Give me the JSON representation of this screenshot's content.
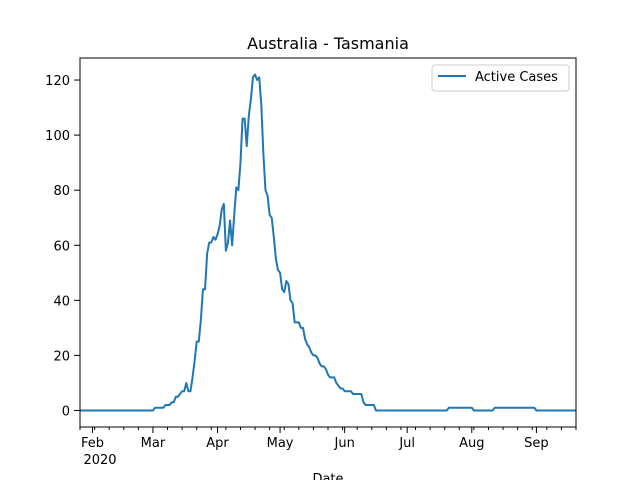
{
  "chart_data": {
    "type": "line",
    "title": "Australia - Tasmania",
    "xlabel": "Date",
    "ylabel": "",
    "year_label": "2020",
    "xlim": [
      "2020-01-26",
      "2020-09-20"
    ],
    "ylim": [
      -6,
      128
    ],
    "x_ticks": [
      {
        "date": "2020-02-01",
        "label": "Feb"
      },
      {
        "date": "2020-03-01",
        "label": "Mar"
      },
      {
        "date": "2020-04-01",
        "label": "Apr"
      },
      {
        "date": "2020-05-01",
        "label": "May"
      },
      {
        "date": "2020-06-01",
        "label": "Jun"
      },
      {
        "date": "2020-07-01",
        "label": "Jul"
      },
      {
        "date": "2020-08-01",
        "label": "Aug"
      },
      {
        "date": "2020-09-01",
        "label": "Sep"
      }
    ],
    "y_ticks": [
      0,
      20,
      40,
      60,
      80,
      100,
      120
    ],
    "legend": {
      "position": "top-right",
      "entries": [
        "Active Cases"
      ]
    },
    "grid": false,
    "series": [
      {
        "name": "Active Cases",
        "color": "#1f77b4",
        "points": [
          [
            "2020-01-26",
            0
          ],
          [
            "2020-02-15",
            0
          ],
          [
            "2020-03-01",
            0
          ],
          [
            "2020-03-02",
            1
          ],
          [
            "2020-03-06",
            1
          ],
          [
            "2020-03-07",
            2
          ],
          [
            "2020-03-09",
            2
          ],
          [
            "2020-03-10",
            3
          ],
          [
            "2020-03-11",
            3
          ],
          [
            "2020-03-12",
            5
          ],
          [
            "2020-03-13",
            5
          ],
          [
            "2020-03-14",
            6
          ],
          [
            "2020-03-15",
            7
          ],
          [
            "2020-03-16",
            7
          ],
          [
            "2020-03-17",
            10
          ],
          [
            "2020-03-18",
            7
          ],
          [
            "2020-03-19",
            7
          ],
          [
            "2020-03-20",
            12
          ],
          [
            "2020-03-21",
            18
          ],
          [
            "2020-03-22",
            25
          ],
          [
            "2020-03-23",
            25
          ],
          [
            "2020-03-24",
            33
          ],
          [
            "2020-03-25",
            44
          ],
          [
            "2020-03-26",
            44
          ],
          [
            "2020-03-27",
            57
          ],
          [
            "2020-03-28",
            61
          ],
          [
            "2020-03-29",
            61
          ],
          [
            "2020-03-30",
            63
          ],
          [
            "2020-03-31",
            62
          ],
          [
            "2020-04-01",
            64
          ],
          [
            "2020-04-02",
            67
          ],
          [
            "2020-04-03",
            73
          ],
          [
            "2020-04-04",
            75
          ],
          [
            "2020-04-05",
            58
          ],
          [
            "2020-04-06",
            61
          ],
          [
            "2020-04-07",
            69
          ],
          [
            "2020-04-08",
            60
          ],
          [
            "2020-04-09",
            71
          ],
          [
            "2020-04-10",
            81
          ],
          [
            "2020-04-11",
            80
          ],
          [
            "2020-04-12",
            90
          ],
          [
            "2020-04-13",
            106
          ],
          [
            "2020-04-14",
            106
          ],
          [
            "2020-04-15",
            96
          ],
          [
            "2020-04-16",
            107
          ],
          [
            "2020-04-17",
            113
          ],
          [
            "2020-04-18",
            121
          ],
          [
            "2020-04-19",
            122
          ],
          [
            "2020-04-20",
            120
          ],
          [
            "2020-04-21",
            121
          ],
          [
            "2020-04-22",
            111
          ],
          [
            "2020-04-23",
            93
          ],
          [
            "2020-04-24",
            80
          ],
          [
            "2020-04-25",
            78
          ],
          [
            "2020-04-26",
            71
          ],
          [
            "2020-04-27",
            70
          ],
          [
            "2020-04-28",
            63
          ],
          [
            "2020-04-29",
            55
          ],
          [
            "2020-04-30",
            51
          ],
          [
            "2020-05-01",
            50
          ],
          [
            "2020-05-02",
            44
          ],
          [
            "2020-05-03",
            43
          ],
          [
            "2020-05-04",
            47
          ],
          [
            "2020-05-05",
            46
          ],
          [
            "2020-05-06",
            40
          ],
          [
            "2020-05-07",
            39
          ],
          [
            "2020-05-08",
            32
          ],
          [
            "2020-05-09",
            32
          ],
          [
            "2020-05-10",
            32
          ],
          [
            "2020-05-11",
            30
          ],
          [
            "2020-05-12",
            30
          ],
          [
            "2020-05-13",
            26
          ],
          [
            "2020-05-14",
            24
          ],
          [
            "2020-05-15",
            23
          ],
          [
            "2020-05-16",
            21
          ],
          [
            "2020-05-17",
            20
          ],
          [
            "2020-05-18",
            20
          ],
          [
            "2020-05-19",
            19
          ],
          [
            "2020-05-20",
            17
          ],
          [
            "2020-05-21",
            16
          ],
          [
            "2020-05-22",
            16
          ],
          [
            "2020-05-23",
            15
          ],
          [
            "2020-05-24",
            13
          ],
          [
            "2020-05-25",
            12
          ],
          [
            "2020-05-26",
            12
          ],
          [
            "2020-05-27",
            12
          ],
          [
            "2020-05-28",
            10
          ],
          [
            "2020-05-29",
            9
          ],
          [
            "2020-05-30",
            8
          ],
          [
            "2020-05-31",
            8
          ],
          [
            "2020-06-01",
            7
          ],
          [
            "2020-06-02",
            7
          ],
          [
            "2020-06-03",
            7
          ],
          [
            "2020-06-04",
            7
          ],
          [
            "2020-06-05",
            6
          ],
          [
            "2020-06-06",
            6
          ],
          [
            "2020-06-07",
            6
          ],
          [
            "2020-06-08",
            6
          ],
          [
            "2020-06-09",
            6
          ],
          [
            "2020-06-10",
            3
          ],
          [
            "2020-06-11",
            2
          ],
          [
            "2020-06-12",
            2
          ],
          [
            "2020-06-15",
            2
          ],
          [
            "2020-06-16",
            0
          ],
          [
            "2020-07-20",
            0
          ],
          [
            "2020-07-21",
            1
          ],
          [
            "2020-08-01",
            1
          ],
          [
            "2020-08-02",
            0
          ],
          [
            "2020-08-11",
            0
          ],
          [
            "2020-08-12",
            1
          ],
          [
            "2020-08-31",
            1
          ],
          [
            "2020-09-01",
            0
          ],
          [
            "2020-09-20",
            0
          ]
        ]
      }
    ]
  }
}
